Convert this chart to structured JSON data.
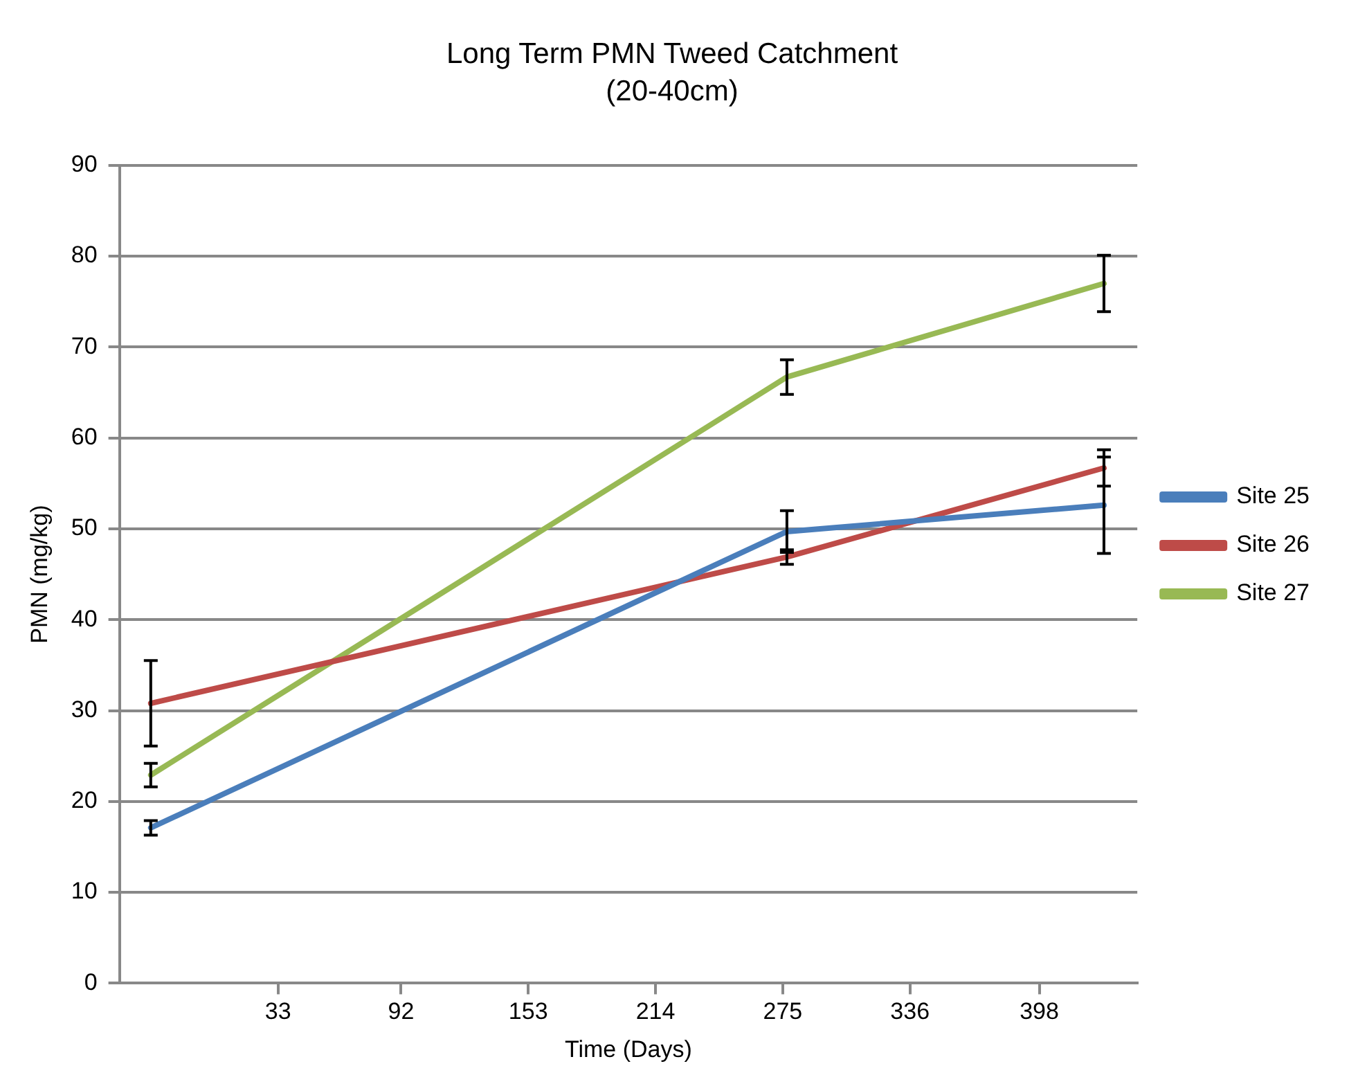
{
  "chart_data": {
    "type": "line",
    "title": "Long Term PMN Tweed Catchment",
    "subtitle": "(20-40cm)",
    "xlabel": "Time (Days)",
    "ylabel": "PMN (mg/kg)",
    "x": [
      -28,
      277,
      429
    ],
    "series": [
      {
        "name": "Site 25",
        "color": "#4a7ebb",
        "values": [
          17.1,
          49.7,
          52.6
        ],
        "errors": [
          0.8,
          2.3,
          5.3
        ]
      },
      {
        "name": "Site 26",
        "color": "#be4b48",
        "values": [
          30.8,
          46.9,
          56.7
        ],
        "errors": [
          4.7,
          0.8,
          2
        ]
      },
      {
        "name": "Site 27",
        "color": "#98b954",
        "values": [
          22.9,
          66.7,
          77.0
        ],
        "errors": [
          1.3,
          1.9,
          3.1
        ]
      }
    ],
    "xlim": [
      -43,
      445
    ],
    "xticks": [
      33,
      92,
      153,
      214,
      275,
      336,
      398
    ],
    "ylim": [
      0,
      90
    ],
    "yticks": [
      0,
      10,
      20,
      30,
      40,
      50,
      60,
      70,
      80,
      90
    ],
    "grid": "y",
    "legend": "right",
    "marker": "none",
    "line_style": "solid"
  }
}
